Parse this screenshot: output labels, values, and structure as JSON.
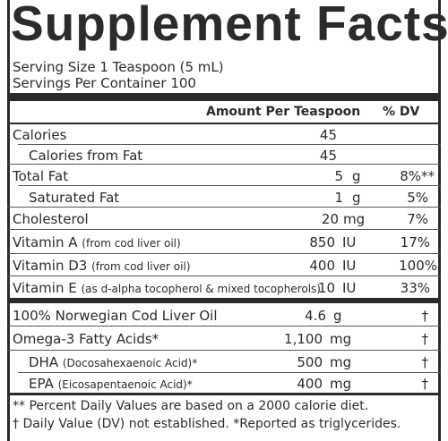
{
  "title": "Supplement Facts",
  "serving_size": "Serving Size 1 Teaspoon (5 mL)",
  "servings_per_container": "Servings Per Container 100",
  "header": {
    "amount": "Amount Per Teaspoon",
    "dv": "% DV"
  },
  "rows": [
    {
      "label": "Calories",
      "note": "",
      "amount": "45",
      "unit": "",
      "dv": ""
    },
    {
      "label": "Calories from Fat",
      "note": "",
      "amount": "45",
      "unit": "",
      "dv": ""
    },
    {
      "label": "Total Fat",
      "note": "",
      "amount": "5",
      "unit": "g",
      "dv": "8%**"
    },
    {
      "label": "Saturated Fat",
      "note": "",
      "amount": "1",
      "unit": "g",
      "dv": "5%"
    },
    {
      "label": "Cholesterol",
      "note": "",
      "amount": "20",
      "unit": "mg",
      "dv": "7%"
    },
    {
      "label": "Vitamin A",
      "note": "(from cod liver oil)",
      "amount": "850",
      "unit": "IU",
      "dv": "17%"
    },
    {
      "label": "Vitamin D3",
      "note": "(from cod liver oil)",
      "amount": "400",
      "unit": "IU",
      "dv": "100%"
    },
    {
      "label": "Vitamin E",
      "note": "(as d-alpha tocopherol & mixed tocopherols)",
      "amount": "10",
      "unit": "IU",
      "dv": "33%"
    },
    {
      "label": "100% Norwegian Cod Liver Oil",
      "note": "",
      "amount": "4.6",
      "unit": "g",
      "dv": "†"
    },
    {
      "label": "Omega-3 Fatty Acids*",
      "note": "",
      "amount": "1,100",
      "unit": "mg",
      "dv": "†"
    },
    {
      "label": "DHA",
      "note": "(Docosahexaenoic Acid)*",
      "amount": "500",
      "unit": "mg",
      "dv": "†"
    },
    {
      "label": "EPA",
      "note": "(Eicosapentaenoic Acid)*",
      "amount": "400",
      "unit": "mg",
      "dv": "†"
    }
  ],
  "footnotes": [
    "** Percent Daily Values are based on a 2000 calorie diet.",
    "† Daily Value (DV) not established. *Reported as triglycerides."
  ]
}
